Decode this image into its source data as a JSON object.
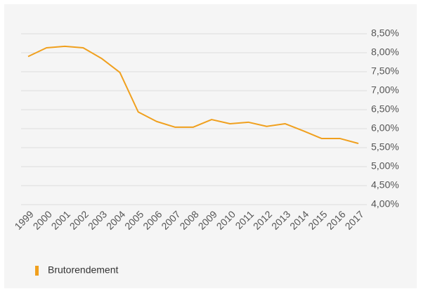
{
  "chart_data": {
    "type": "line",
    "categories": [
      "1999",
      "2000",
      "2001",
      "2002",
      "2003",
      "2004",
      "2005",
      "2006",
      "2007",
      "2008",
      "2009",
      "2010",
      "2011",
      "2012",
      "2013",
      "2014",
      "2015",
      "2016",
      "2017"
    ],
    "series": [
      {
        "name": "Brutorendement",
        "color": "#f0a01e",
        "values": [
          7.9,
          8.13,
          8.17,
          8.13,
          7.85,
          7.48,
          6.44,
          6.19,
          6.04,
          6.04,
          6.24,
          6.13,
          6.17,
          6.06,
          6.13,
          5.94,
          5.74,
          5.74,
          5.61
        ]
      }
    ],
    "ylim": [
      4.0,
      8.5
    ],
    "yticks": [
      {
        "value": 4.0,
        "label": "4,00%"
      },
      {
        "value": 4.5,
        "label": "4,50%"
      },
      {
        "value": 5.0,
        "label": "5,00%"
      },
      {
        "value": 5.5,
        "label": "5,50%"
      },
      {
        "value": 6.0,
        "label": "6,00%"
      },
      {
        "value": 6.5,
        "label": "6,50%"
      },
      {
        "value": 7.0,
        "label": "7,00%"
      },
      {
        "value": 7.5,
        "label": "7,50%"
      },
      {
        "value": 8.0,
        "label": "8,00%"
      },
      {
        "value": 8.5,
        "label": "8,50%"
      }
    ],
    "grid": true,
    "legend": "bottom-left"
  }
}
